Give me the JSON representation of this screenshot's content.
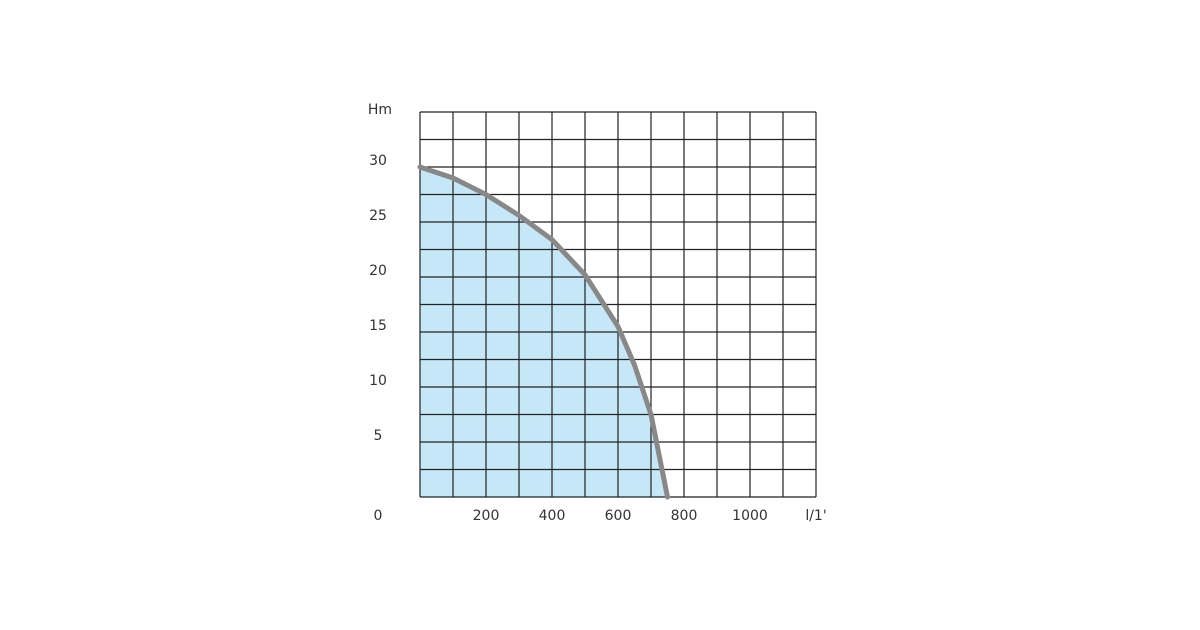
{
  "chart_data": {
    "type": "area",
    "y_label": "Hm",
    "x_label": "l/1'",
    "x": [
      0,
      100,
      200,
      300,
      400,
      500,
      600,
      650,
      700,
      750
    ],
    "series": [
      {
        "color": "#888888",
        "fill": "#c6e7f7",
        "values": [
          30,
          29,
          27.5,
          25.6,
          23.4,
          20.2,
          15.5,
          12,
          7.5,
          0
        ]
      }
    ],
    "xlim": [
      0,
      1200
    ],
    "xticks": [
      200,
      400,
      600,
      800,
      1000
    ],
    "ylim": [
      0,
      35
    ],
    "yticks": [
      0,
      5,
      10,
      15,
      20,
      25,
      30
    ],
    "grid": true
  }
}
